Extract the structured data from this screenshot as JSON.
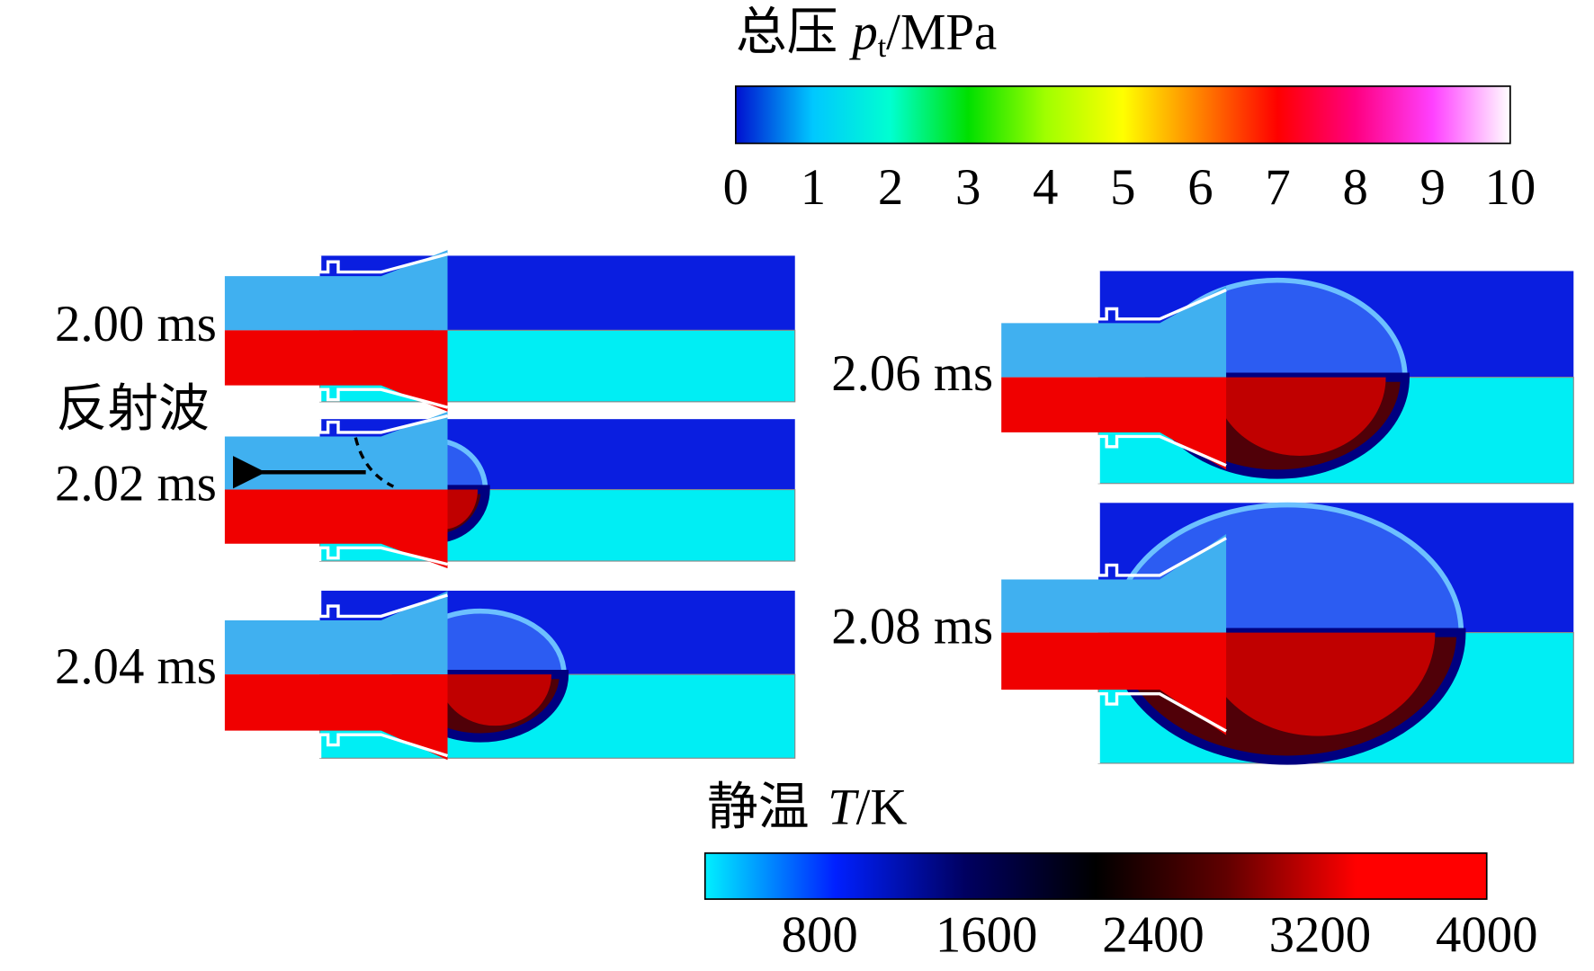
{
  "colorbars": [
    {
      "title": "总压",
      "symbol": "p",
      "subscript": "t",
      "unit": "/MPa",
      "range": [
        0,
        10
      ],
      "ticks": [
        0,
        1,
        2,
        3,
        4,
        5,
        6,
        7,
        8,
        9,
        10
      ],
      "colors": [
        "#0010d0",
        "#00c8ff",
        "#00ffd0",
        "#00e000",
        "#a0ff00",
        "#ffff00",
        "#ff8000",
        "#ff0000",
        "#ff0080",
        "#ff40ff",
        "#ffffff"
      ]
    },
    {
      "title": "静温",
      "symbol": "T",
      "unit": "/K",
      "range": [
        250,
        4000
      ],
      "ticks": [
        800,
        1600,
        2400,
        3200,
        4000
      ],
      "colors": [
        "#00f0ff",
        "#0020ff",
        "#000060",
        "#000000",
        "#600000",
        "#ff0000",
        "#ff0000"
      ]
    }
  ],
  "panels": [
    {
      "label": "2.00 ms"
    },
    {
      "label": "2.02 ms"
    },
    {
      "label": "2.04 ms"
    },
    {
      "label": "2.06 ms"
    },
    {
      "label": "2.08 ms"
    }
  ],
  "annotation": "反射波"
}
